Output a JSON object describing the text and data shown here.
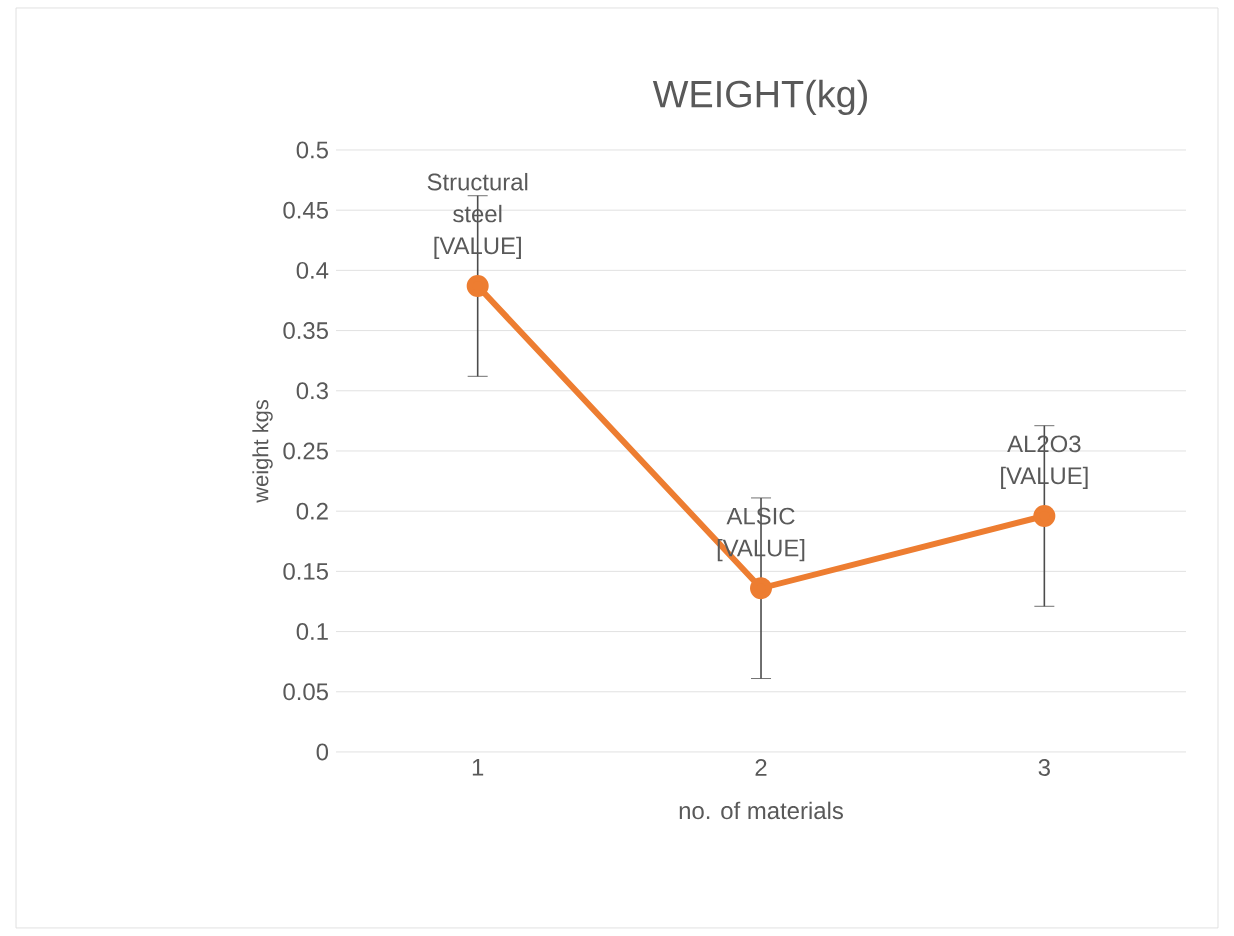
{
  "chart_data": {
    "type": "line",
    "title": "WEIGHT(kg)",
    "xlabel": "no. of materials",
    "ylabel": "weight kgs",
    "categories": [
      "1",
      "2",
      "3"
    ],
    "series": [
      {
        "color": "#ed7d31",
        "values": [
          0.387,
          0.136,
          0.196
        ],
        "errors": [
          0.075,
          0.075,
          0.075
        ]
      }
    ],
    "ylim": [
      0,
      0.5
    ],
    "yticks": [
      0,
      0.05,
      0.1,
      0.15,
      0.2,
      0.25,
      0.3,
      0.35,
      0.4,
      0.45,
      0.5
    ],
    "grid": "y",
    "marker": "circle",
    "line_style": "solid",
    "annotations": [
      {
        "text": "Structural steel [VALUE]",
        "x": "1",
        "y": 0.387
      },
      {
        "text": "ALSIC [VALUE]",
        "x": "2",
        "y": 0.136
      },
      {
        "text": "AL2O3 [VALUE]",
        "x": "3",
        "y": 0.196
      }
    ]
  }
}
